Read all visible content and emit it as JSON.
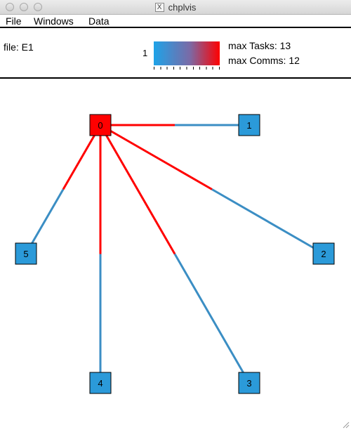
{
  "window": {
    "title": "chplvis",
    "icon": "x11-icon",
    "icon_glyph": "X"
  },
  "menu": {
    "items": [
      "File",
      "Windows",
      "Data"
    ]
  },
  "info": {
    "file_label": "file: E1",
    "legend_min": "1",
    "max_tasks": "max Tasks: 13",
    "max_comms": "max Comms: 12"
  },
  "colors": {
    "low": "#1ea3e8",
    "high": "#ff0000",
    "edge_low": "#3b8ec4",
    "node_low": "#2b9ad9"
  },
  "nodes": [
    {
      "id": "0",
      "level": "high"
    },
    {
      "id": "1",
      "level": "low"
    },
    {
      "id": "2",
      "level": "low"
    },
    {
      "id": "3",
      "level": "low"
    },
    {
      "id": "4",
      "level": "low"
    },
    {
      "id": "5",
      "level": "low"
    }
  ],
  "edges": [
    {
      "from": "0",
      "to": "1"
    },
    {
      "from": "0",
      "to": "2"
    },
    {
      "from": "0",
      "to": "3"
    },
    {
      "from": "0",
      "to": "4"
    },
    {
      "from": "0",
      "to": "5"
    }
  ]
}
